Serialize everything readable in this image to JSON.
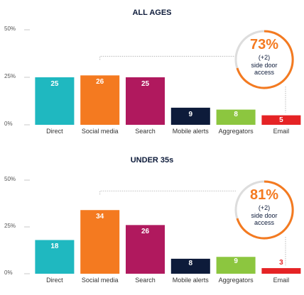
{
  "chart_data": [
    {
      "type": "bar",
      "title": "ALL AGES",
      "categories": [
        "Direct",
        "Social media",
        "Search",
        "Mobile alerts",
        "Aggregators",
        "Email"
      ],
      "values": [
        25,
        26,
        25,
        9,
        8,
        5
      ],
      "colors": [
        "#1fb8c0",
        "#f47a20",
        "#b0195e",
        "#0d1b3a",
        "#8cc63f",
        "#e52325"
      ],
      "ylim": [
        0,
        50
      ],
      "yticks": [
        {
          "value": 0,
          "label": "0%"
        },
        {
          "value": 25,
          "label": "25%"
        },
        {
          "value": 50,
          "label": "50%"
        }
      ],
      "annotation": {
        "label": "73%",
        "change": "(+2)",
        "text": "side door access"
      }
    },
    {
      "type": "bar",
      "title": "UNDER 35s",
      "categories": [
        "Direct",
        "Social media",
        "Search",
        "Mobile alerts",
        "Aggregators",
        "Email"
      ],
      "values": [
        18,
        34,
        26,
        8,
        9,
        3
      ],
      "colors": [
        "#1fb8c0",
        "#f47a20",
        "#b0195e",
        "#0d1b3a",
        "#8cc63f",
        "#e52325"
      ],
      "ylim": [
        0,
        50
      ],
      "yticks": [
        {
          "value": 0,
          "label": "0%"
        },
        {
          "value": 25,
          "label": "25%"
        },
        {
          "value": 50,
          "label": "50%"
        }
      ],
      "annotation": {
        "label": "81%",
        "change": "(+2)",
        "text": "side door access"
      }
    }
  ]
}
